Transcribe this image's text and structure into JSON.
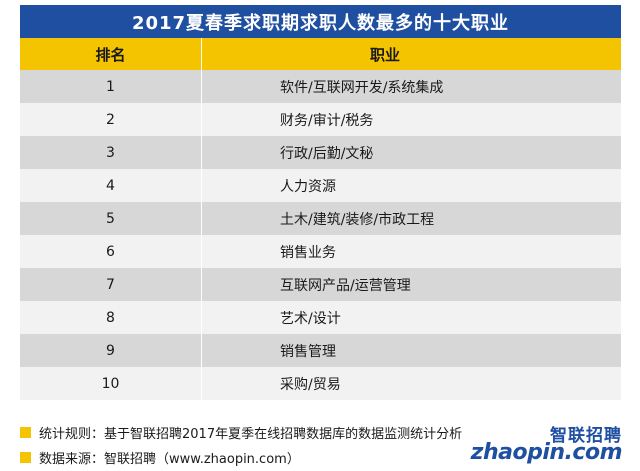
{
  "title": "2017夏春季求职期求职人数最多的十大职业",
  "columns": {
    "rank": "排名",
    "job": "职业"
  },
  "rows": [
    {
      "rank": "1",
      "job": "软件/互联网开发/系统集成"
    },
    {
      "rank": "2",
      "job": "财务/审计/税务"
    },
    {
      "rank": "3",
      "job": "行政/后勤/文秘"
    },
    {
      "rank": "4",
      "job": "人力资源"
    },
    {
      "rank": "5",
      "job": "土木/建筑/装修/市政工程"
    },
    {
      "rank": "6",
      "job": "销售业务"
    },
    {
      "rank": "7",
      "job": "互联网产品/运营管理"
    },
    {
      "rank": "8",
      "job": "艺术/设计"
    },
    {
      "rank": "9",
      "job": "销售管理"
    },
    {
      "rank": "10",
      "job": "采购/贸易"
    }
  ],
  "notes": [
    "统计规则：基于智联招聘2017年夏季在线招聘数据库的数据监测统计分析",
    "数据来源：智联招聘（www.zhaopin.com）"
  ],
  "logo": {
    "cn": "智联招聘",
    "en": "zhaopin.com"
  },
  "colors": {
    "title_bg": "#1f4fa0",
    "header_bg": "#f5c400",
    "row_odd": "#d7d7d7",
    "row_even": "#f2f2f2"
  }
}
